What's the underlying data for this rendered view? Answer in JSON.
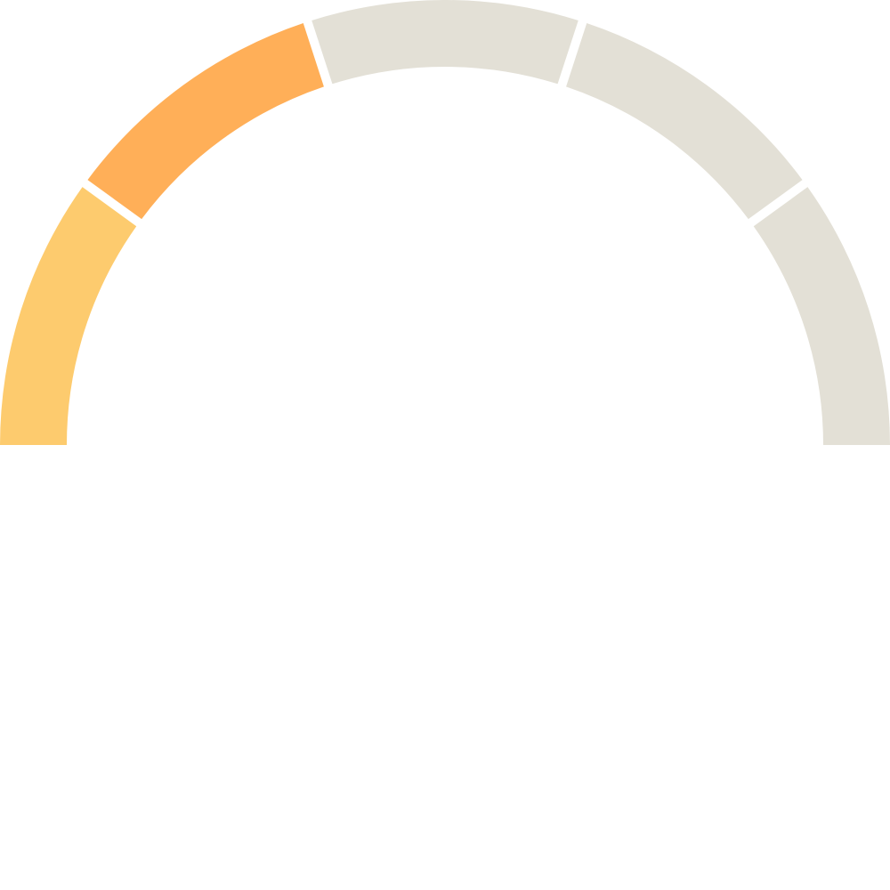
{
  "chart_data": {
    "type": "gauge",
    "title": "",
    "segment_count": 5,
    "filled_segments": 2,
    "level": 0.4,
    "segments": [
      {
        "filled": true,
        "color": "#FDCB6E"
      },
      {
        "filled": true,
        "color": "#FFAF58"
      },
      {
        "filled": false,
        "color": "#E3E0D6"
      },
      {
        "filled": false,
        "color": "#E3E0D6"
      },
      {
        "filled": false,
        "color": "#E3E0D6"
      }
    ],
    "colors": {
      "empty": "#E3E0D6",
      "background": "#FFFFFF"
    }
  }
}
